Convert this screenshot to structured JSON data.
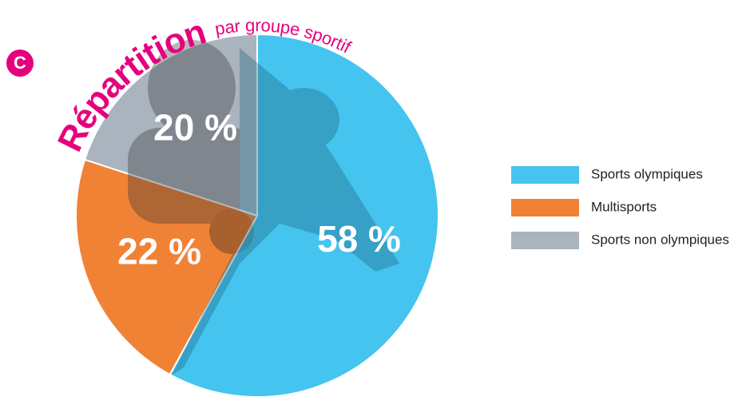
{
  "chart_data": {
    "type": "pie",
    "badge": "C",
    "title": "Répartition",
    "subtitle": "par groupe sportif",
    "categories": [
      "Sports olympiques",
      "Multisports",
      "Sports non olympiques"
    ],
    "values": [
      58,
      22,
      20
    ],
    "value_labels": [
      "58 %",
      "22 %",
      "20 %"
    ],
    "colors": [
      "#45c4ef",
      "#f08236",
      "#a9b4be"
    ]
  }
}
